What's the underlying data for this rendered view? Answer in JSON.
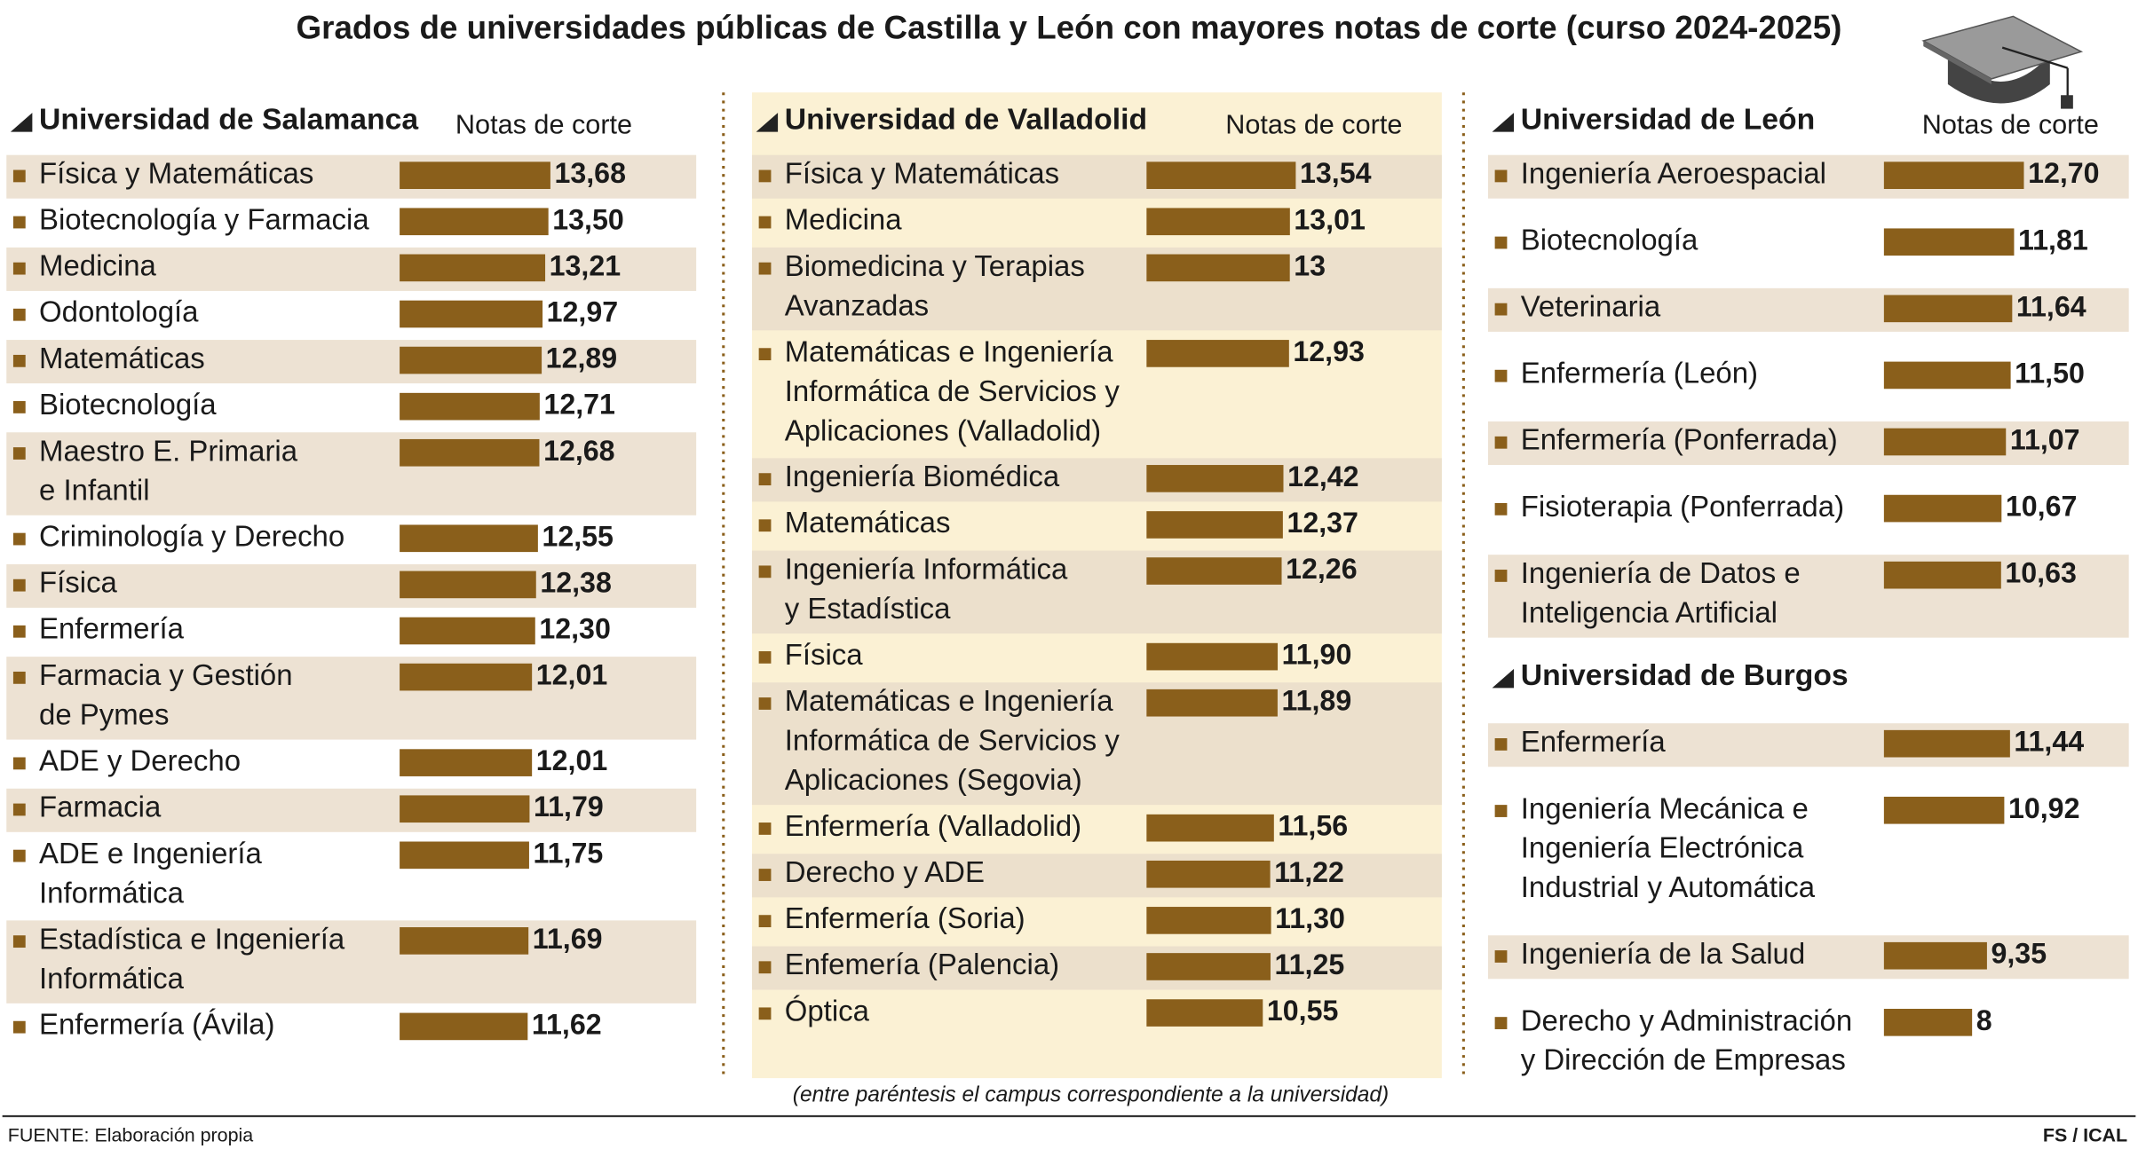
{
  "title": "Grados de universidades públicas de Castilla y León con mayores notas de corte (curso 2024-2025)",
  "note": "(entre paréntesis el campus correspondiente a la universidad)",
  "source": "FUENTE: Elaboración propia",
  "credit": "FS / ICAL",
  "chart_data": [
    {
      "type": "bar",
      "orientation": "horizontal",
      "title": "Universidad de Salamanca",
      "value_header": "Notas de corte",
      "color": "#8a5f1b",
      "categories": [
        "Física y Matemáticas",
        "Biotecnología y Farmacia",
        "Medicina",
        "Odontología",
        "Matemáticas",
        "Biotecnología",
        "Maestro E. Primaria\ne Infantil",
        "Criminología y Derecho",
        "Física",
        "Enfermería",
        "Farmacia y Gestión\nde Pymes",
        "ADE y Derecho",
        "Farmacia",
        "ADE e Ingeniería\nInformática",
        "Estadística e Ingeniería\nInformática",
        "Enfermería (Ávila)"
      ],
      "values": [
        13.68,
        13.5,
        13.21,
        12.97,
        12.89,
        12.71,
        12.68,
        12.55,
        12.38,
        12.3,
        12.01,
        12.01,
        11.79,
        11.75,
        11.69,
        11.62
      ],
      "value_labels": [
        "13,68",
        "13,50",
        "13,21",
        "12,97",
        "12,89",
        "12,71",
        "12,68",
        "12,55",
        "12,38",
        "12,30",
        "12,01",
        "12,01",
        "11,79",
        "11,75",
        "11,69",
        "11,62"
      ]
    },
    {
      "type": "bar",
      "orientation": "horizontal",
      "title": "Universidad de Valladolid",
      "value_header": "Notas de corte",
      "color": "#8a5f1b",
      "categories": [
        "Física y Matemáticas",
        "Medicina",
        "Biomedicina y Terapias\nAvanzadas",
        "Matemáticas e Ingeniería\nInformática de Servicios y\nAplicaciones (Valladolid)",
        "Ingeniería Biomédica",
        "Matemáticas",
        "Ingeniería Informática\ny Estadística",
        "Física",
        "Matemáticas e Ingeniería\nInformática de Servicios y\nAplicaciones (Segovia)",
        "Enfermería (Valladolid)",
        "Derecho y ADE",
        "Enfermería (Soria)",
        "Enfemería (Palencia)",
        "Óptica"
      ],
      "values": [
        13.54,
        13.01,
        13,
        12.93,
        12.42,
        12.37,
        12.26,
        11.9,
        11.89,
        11.56,
        11.22,
        11.3,
        11.25,
        10.55
      ],
      "value_labels": [
        "13,54",
        "13,01",
        "13",
        "12,93",
        "12,42",
        "12,37",
        "12,26",
        "11,90",
        "11,89",
        "11,56",
        "11,22",
        "11,30",
        "11,25",
        "10,55"
      ]
    },
    {
      "type": "bar",
      "orientation": "horizontal",
      "title": "Universidad de León",
      "value_header": "Notas de corte",
      "color": "#8a5f1b",
      "categories": [
        "Ingeniería Aeroespacial",
        "Biotecnología",
        "Veterinaria",
        "Enfermería (León)",
        "Enfermería (Ponferrada)",
        "Fisioterapia (Ponferrada)",
        "Ingeniería de Datos e\nInteligencia Artificial"
      ],
      "values": [
        12.7,
        11.81,
        11.64,
        11.5,
        11.07,
        10.67,
        10.63
      ],
      "value_labels": [
        "12,70",
        "11,81",
        "11,64",
        "11,50",
        "11,07",
        "10,67",
        "10,63"
      ]
    },
    {
      "type": "bar",
      "orientation": "horizontal",
      "title": "Universidad de Burgos",
      "color": "#8a5f1b",
      "categories": [
        "Enfermería",
        "Ingeniería Mecánica e\nIngeniería Electrónica\nIndustrial y Automática",
        "Ingeniería de la Salud",
        "Derecho y Administración\ny Dirección de Empresas"
      ],
      "values": [
        11.44,
        10.92,
        9.35,
        8
      ],
      "value_labels": [
        "11,44",
        "10,92",
        "9,35",
        "8"
      ]
    }
  ]
}
